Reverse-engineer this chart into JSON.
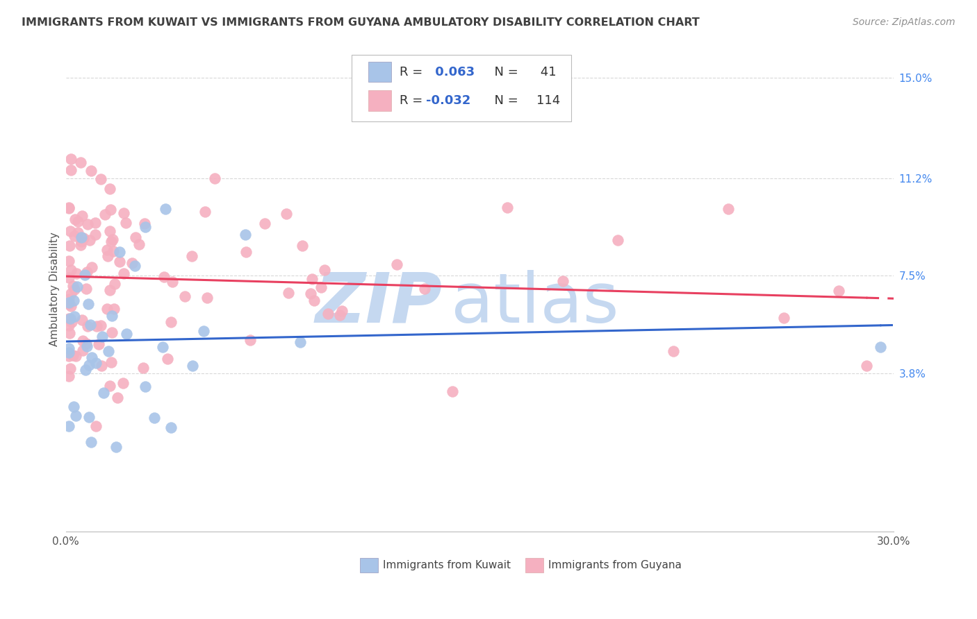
{
  "title": "IMMIGRANTS FROM KUWAIT VS IMMIGRANTS FROM GUYANA AMBULATORY DISABILITY CORRELATION CHART",
  "source": "Source: ZipAtlas.com",
  "ylabel": "Ambulatory Disability",
  "xmin": 0.0,
  "xmax": 0.3,
  "ymin": -0.022,
  "ymax": 0.162,
  "kuwait_R": 0.063,
  "kuwait_N": 41,
  "guyana_R": -0.032,
  "guyana_N": 114,
  "kuwait_color": "#a8c4e8",
  "guyana_color": "#f5b0c0",
  "kuwait_line_color": "#3366cc",
  "guyana_line_color": "#e84060",
  "background_color": "#ffffff",
  "grid_color": "#d8d8d8",
  "title_color": "#404040",
  "source_color": "#909090",
  "legend_r_color": "#3366cc",
  "legend_n_color": "#333333",
  "ytick_color": "#4488ee",
  "watermark_zip_color": "#c8d8f0",
  "watermark_atlas_color": "#c8d8f0"
}
